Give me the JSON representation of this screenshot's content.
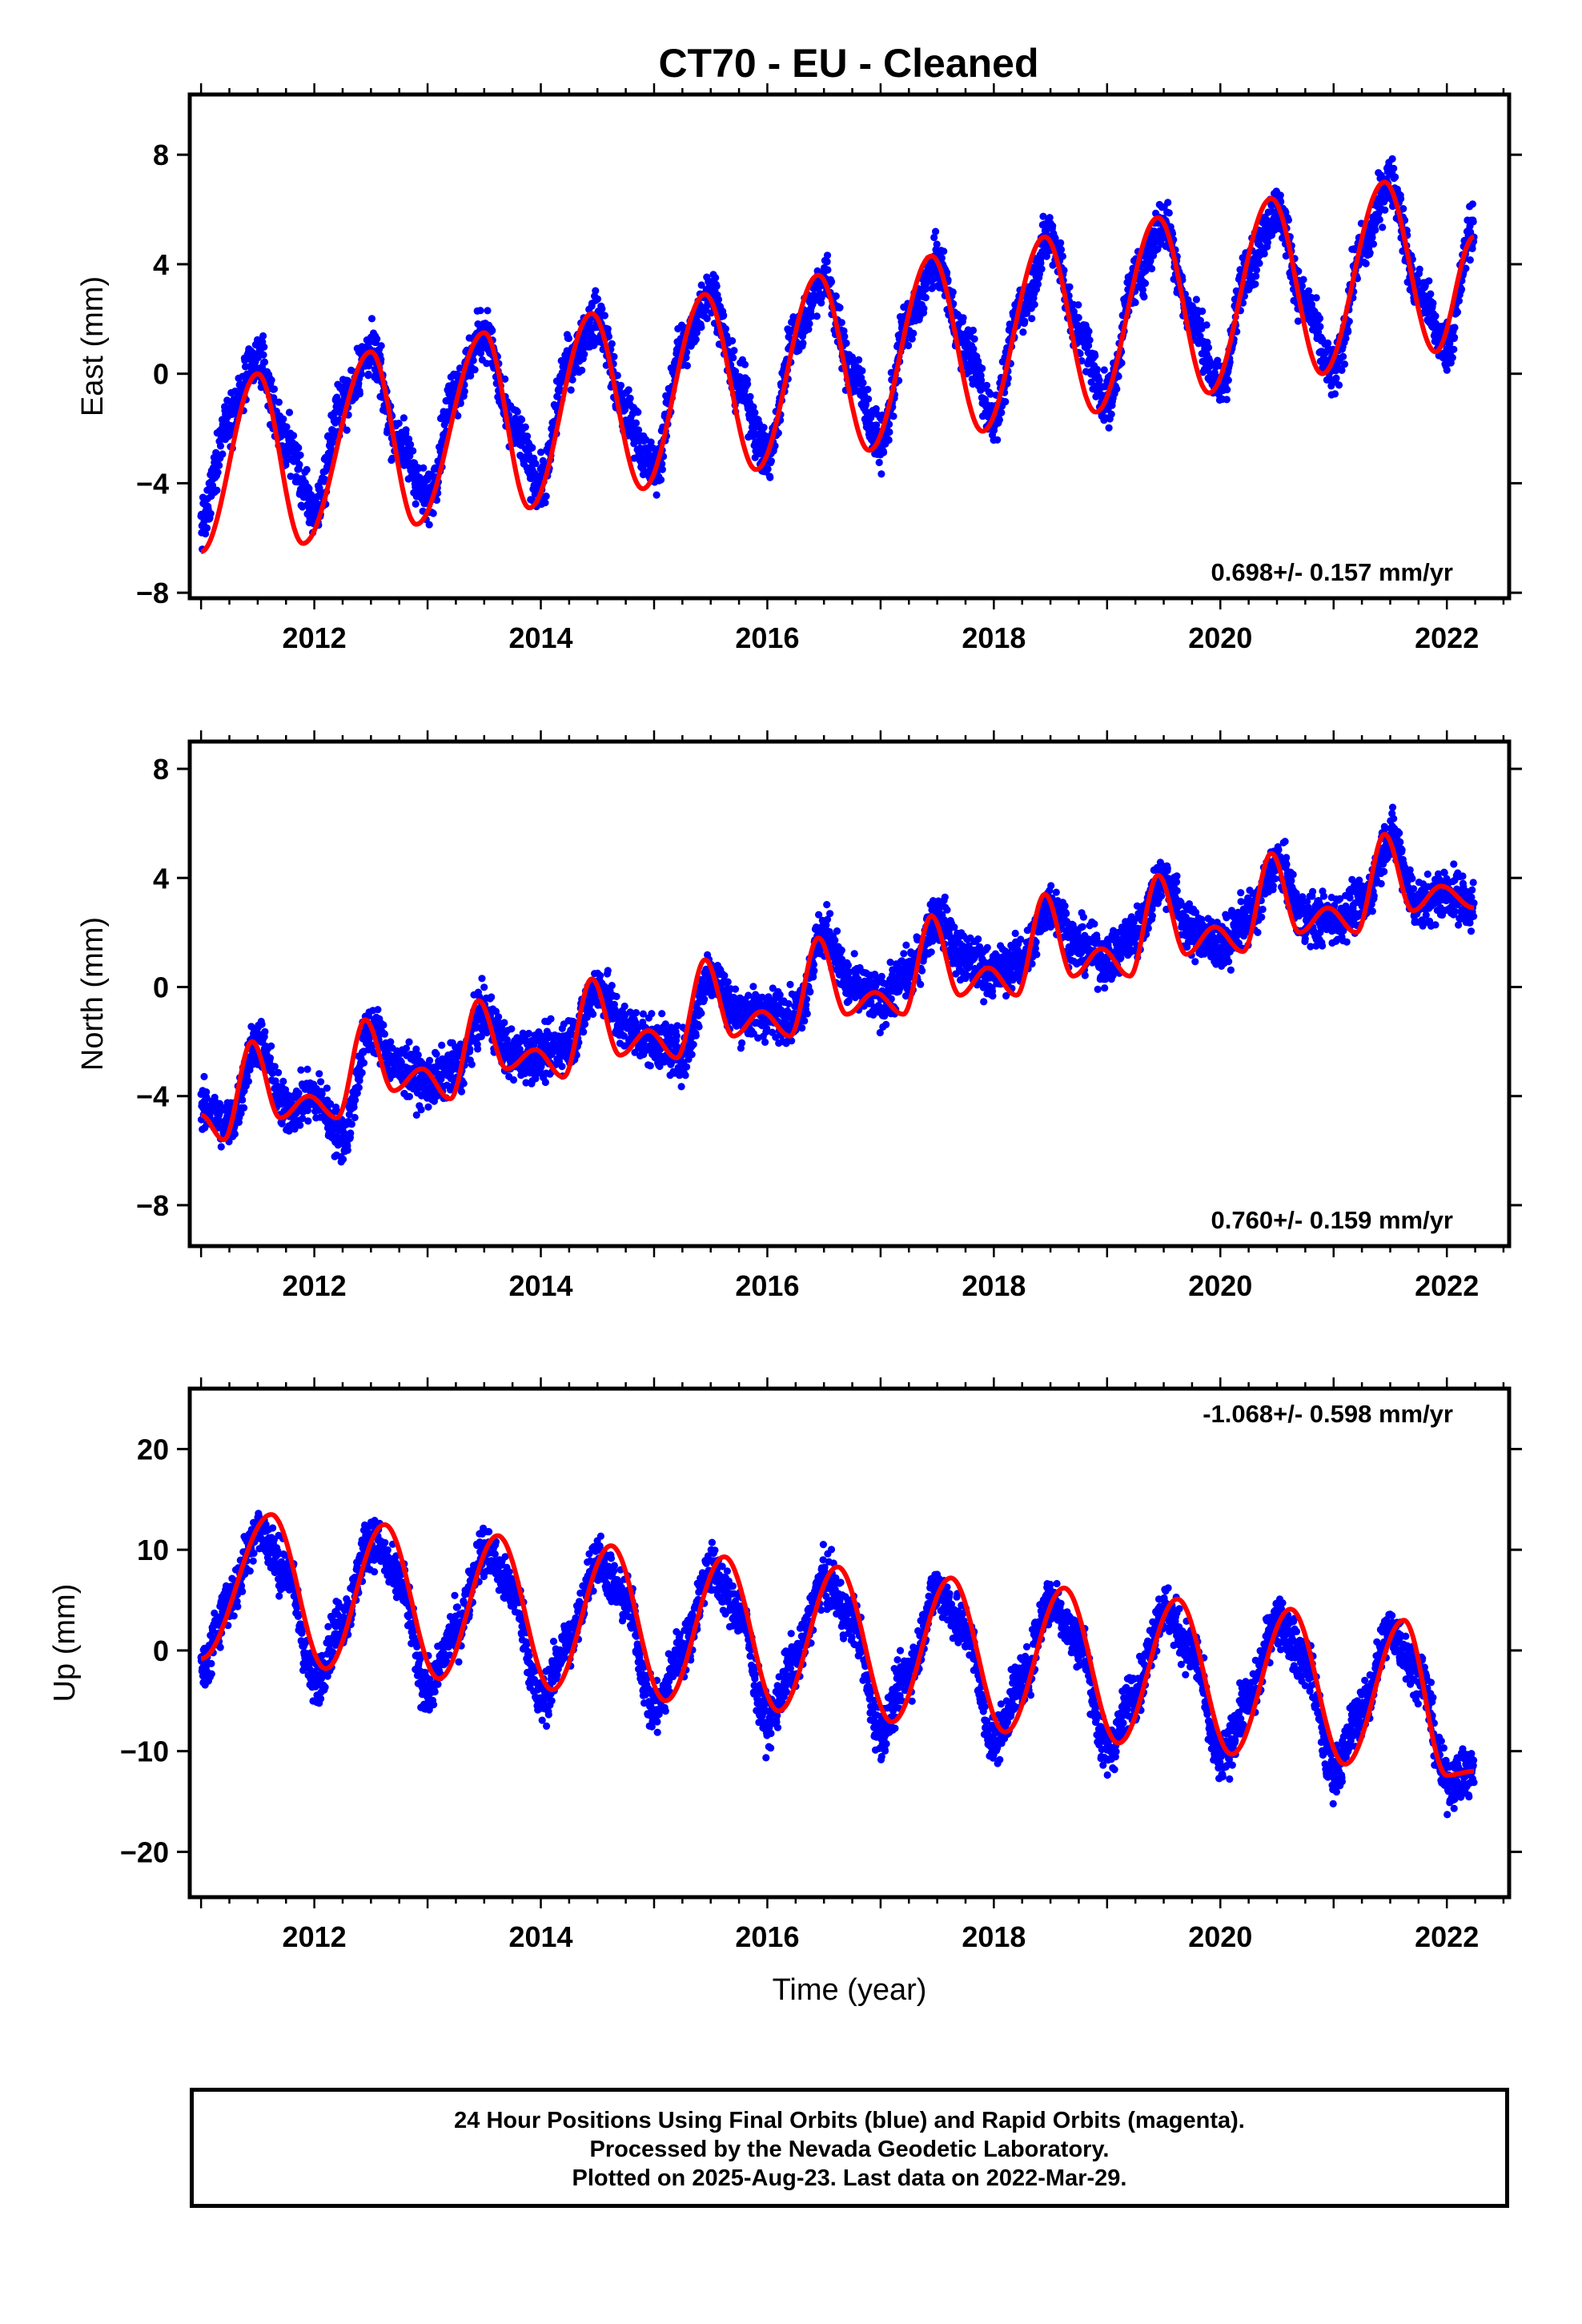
{
  "title": "CT70  - EU - Cleaned",
  "caption": {
    "line1": "24 Hour Positions Using Final Orbits (blue) and Rapid Orbits (magenta).",
    "line2": "Processed by the Nevada Geodetic Laboratory.",
    "line3": "Plotted on 2025-Aug-23. Last data on 2022-Mar-29."
  },
  "colors": {
    "points": "#0000ff",
    "model": "#ff0000",
    "frame": "#000000"
  },
  "chart_data": [
    {
      "type": "scatter",
      "ylabel": "East (mm)",
      "xlim": [
        2010.9,
        2022.55
      ],
      "ylim": [
        -8.2,
        10.2
      ],
      "xticks": [
        2012,
        2014,
        2016,
        2018,
        2020,
        2022
      ],
      "yticks": [
        -8,
        -4,
        0,
        4,
        8
      ],
      "annotation": "0.698+/- 0.157 mm/yr",
      "annotation_position": "bottom-right",
      "series": [
        {
          "marker": "dots",
          "x": [
            2011.0,
            2011.25,
            2011.5,
            2011.75,
            2012.0,
            2012.25,
            2012.5,
            2012.75,
            2013.0,
            2013.25,
            2013.5,
            2013.75,
            2014.0,
            2014.25,
            2014.5,
            2014.75,
            2015.0,
            2015.25,
            2015.5,
            2015.75,
            2016.0,
            2016.25,
            2016.5,
            2016.75,
            2017.0,
            2017.25,
            2017.5,
            2017.75,
            2018.0,
            2018.25,
            2018.5,
            2018.75,
            2019.0,
            2019.25,
            2019.5,
            2019.75,
            2020.0,
            2020.25,
            2020.5,
            2020.75,
            2021.0,
            2021.25,
            2021.5,
            2021.75,
            2022.0,
            2022.24
          ],
          "y": [
            -5.5,
            -1.5,
            0.5,
            -2.5,
            -5.0,
            -1.0,
            0.8,
            -2.5,
            -4.5,
            -0.5,
            1.5,
            -2.0,
            -4.0,
            0.5,
            2.0,
            -1.5,
            -3.5,
            1.0,
            3.0,
            -0.5,
            -3.0,
            1.5,
            3.5,
            0.0,
            -2.5,
            2.0,
            4.0,
            1.0,
            -1.5,
            2.5,
            5.0,
            1.5,
            -1.0,
            3.5,
            5.5,
            2.0,
            -0.5,
            4.0,
            6.0,
            2.5,
            0.0,
            4.5,
            7.0,
            3.0,
            1.0,
            5.5
          ]
        },
        {
          "marker": "line",
          "x": [
            2011.0,
            2011.5,
            2011.9,
            2012.5,
            2012.9,
            2013.5,
            2013.9,
            2014.45,
            2014.9,
            2015.45,
            2015.9,
            2016.45,
            2016.9,
            2017.45,
            2017.9,
            2018.45,
            2018.9,
            2019.45,
            2019.9,
            2020.45,
            2020.9,
            2021.45,
            2021.9,
            2022.24
          ],
          "y": [
            -6.5,
            0.0,
            -6.2,
            0.8,
            -5.5,
            1.5,
            -4.9,
            2.2,
            -4.2,
            2.9,
            -3.5,
            3.6,
            -2.8,
            4.3,
            -2.1,
            5.0,
            -1.4,
            5.7,
            -0.7,
            6.4,
            0.0,
            7.0,
            0.8,
            5.0
          ]
        }
      ]
    },
    {
      "type": "scatter",
      "ylabel": "North (mm)",
      "xlim": [
        2010.9,
        2022.55
      ],
      "ylim": [
        -9.5,
        9.0
      ],
      "xticks": [
        2012,
        2014,
        2016,
        2018,
        2020,
        2022
      ],
      "yticks": [
        -8,
        -4,
        0,
        4,
        8
      ],
      "annotation": "0.760+/- 0.159 mm/yr",
      "annotation_position": "bottom-right",
      "series": [
        {
          "marker": "dots",
          "x": [
            2011.0,
            2011.25,
            2011.5,
            2011.75,
            2012.0,
            2012.25,
            2012.5,
            2012.75,
            2013.0,
            2013.25,
            2013.5,
            2013.75,
            2014.0,
            2014.25,
            2014.5,
            2014.75,
            2015.0,
            2015.25,
            2015.5,
            2015.75,
            2016.0,
            2016.25,
            2016.5,
            2016.75,
            2017.0,
            2017.25,
            2017.5,
            2017.75,
            2018.0,
            2018.25,
            2018.5,
            2018.75,
            2019.0,
            2019.25,
            2019.5,
            2019.75,
            2020.0,
            2020.25,
            2020.5,
            2020.75,
            2021.0,
            2021.25,
            2021.5,
            2021.75,
            2022.0,
            2022.24
          ],
          "y": [
            -4.5,
            -5.0,
            -2.0,
            -4.5,
            -4.0,
            -5.5,
            -1.5,
            -3.0,
            -3.5,
            -3.0,
            -1.0,
            -2.5,
            -2.5,
            -2.0,
            0.0,
            -1.5,
            -2.0,
            -2.5,
            0.5,
            -1.0,
            -1.0,
            -1.0,
            2.0,
            0.0,
            -0.5,
            0.5,
            2.5,
            1.0,
            0.5,
            1.0,
            3.0,
            1.5,
            1.0,
            2.0,
            4.0,
            2.0,
            1.5,
            2.5,
            4.5,
            2.5,
            2.5,
            3.0,
            5.5,
            3.0,
            3.5,
            3.0
          ]
        },
        {
          "marker": "line",
          "x": [
            2011.0,
            2011.2,
            2011.45,
            2011.7,
            2011.95,
            2012.2,
            2012.45,
            2012.7,
            2012.95,
            2013.2,
            2013.45,
            2013.7,
            2013.95,
            2014.2,
            2014.45,
            2014.7,
            2014.95,
            2015.2,
            2015.45,
            2015.7,
            2015.95,
            2016.2,
            2016.45,
            2016.7,
            2016.95,
            2017.2,
            2017.45,
            2017.7,
            2017.95,
            2018.2,
            2018.45,
            2018.7,
            2018.95,
            2019.2,
            2019.45,
            2019.7,
            2019.95,
            2020.2,
            2020.45,
            2020.7,
            2020.95,
            2021.2,
            2021.45,
            2021.7,
            2021.95,
            2022.24
          ],
          "y": [
            -4.7,
            -5.6,
            -2.0,
            -4.8,
            -4.0,
            -4.8,
            -1.2,
            -3.8,
            -3.0,
            -4.1,
            -0.5,
            -3.0,
            -2.3,
            -3.3,
            0.3,
            -2.5,
            -1.6,
            -2.6,
            1.0,
            -1.8,
            -0.9,
            -1.8,
            1.8,
            -1.0,
            -0.2,
            -1.0,
            2.6,
            -0.3,
            0.7,
            -0.3,
            3.4,
            0.4,
            1.4,
            0.4,
            4.1,
            1.2,
            2.2,
            1.3,
            4.9,
            2.0,
            2.9,
            2.0,
            5.6,
            2.8,
            3.7,
            2.9
          ]
        }
      ]
    },
    {
      "type": "scatter",
      "xlabel": "Time (year)",
      "ylabel": "Up (mm)",
      "xlim": [
        2010.9,
        2022.55
      ],
      "ylim": [
        -24.5,
        26.0
      ],
      "xticks": [
        2012,
        2014,
        2016,
        2018,
        2020,
        2022
      ],
      "yticks": [
        -20,
        -10,
        0,
        10,
        20
      ],
      "annotation": "-1.068+/- 0.598 mm/yr",
      "annotation_position": "top-right",
      "series": [
        {
          "marker": "dots",
          "x": [
            2011.0,
            2011.25,
            2011.5,
            2011.75,
            2012.0,
            2012.25,
            2012.5,
            2012.75,
            2013.0,
            2013.25,
            2013.5,
            2013.75,
            2014.0,
            2014.25,
            2014.5,
            2014.75,
            2015.0,
            2015.25,
            2015.5,
            2015.75,
            2016.0,
            2016.25,
            2016.5,
            2016.75,
            2017.0,
            2017.25,
            2017.5,
            2017.75,
            2018.0,
            2018.25,
            2018.5,
            2018.75,
            2019.0,
            2019.25,
            2019.5,
            2019.75,
            2020.0,
            2020.25,
            2020.5,
            2020.75,
            2021.0,
            2021.25,
            2021.5,
            2021.75,
            2022.0,
            2022.24
          ],
          "y": [
            -2.0,
            5.0,
            12.0,
            8.0,
            -3.0,
            3.0,
            11.0,
            7.0,
            -4.0,
            2.0,
            10.0,
            6.0,
            -5.0,
            1.0,
            9.0,
            5.0,
            -6.0,
            0.0,
            8.0,
            4.0,
            -7.0,
            -1.0,
            7.0,
            3.0,
            -8.0,
            -2.0,
            6.0,
            2.0,
            -9.0,
            -3.0,
            5.0,
            1.0,
            -10.0,
            -4.0,
            4.0,
            0.0,
            -11.0,
            -5.0,
            3.0,
            -1.0,
            -12.0,
            -6.0,
            2.0,
            -2.0,
            -13.0,
            -12.0
          ]
        },
        {
          "marker": "line",
          "x": [
            2011.0,
            2011.62,
            2012.1,
            2012.62,
            2013.1,
            2013.62,
            2014.1,
            2014.62,
            2015.1,
            2015.62,
            2016.1,
            2016.62,
            2017.1,
            2017.62,
            2018.1,
            2018.62,
            2019.1,
            2019.62,
            2020.1,
            2020.62,
            2021.1,
            2021.62,
            2022.0,
            2022.24
          ],
          "y": [
            -0.8,
            13.5,
            -1.8,
            12.5,
            -2.8,
            11.4,
            -3.9,
            10.4,
            -5.0,
            9.3,
            -6.0,
            8.3,
            -7.1,
            7.2,
            -8.1,
            6.2,
            -9.2,
            5.1,
            -10.3,
            4.1,
            -11.3,
            3.0,
            -12.4,
            -12.0
          ]
        }
      ]
    }
  ]
}
